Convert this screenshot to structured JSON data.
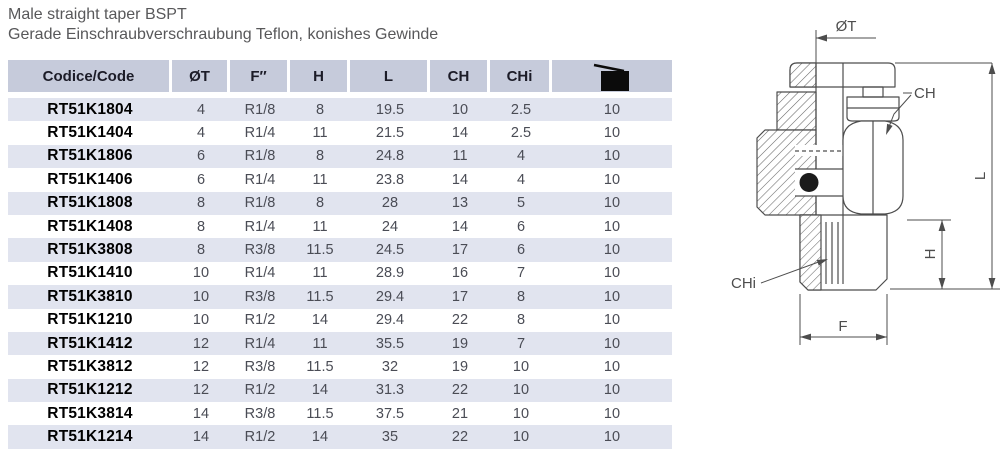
{
  "page": {
    "title_line1": "Male straight taper BSPT",
    "title_line2": "Gerade Einschraubverschraubung Teflon, konishes Gewinde"
  },
  "table": {
    "headers": {
      "code": "Codice/Code",
      "ot": "ØT",
      "f": "F″",
      "h": "H",
      "l": "L",
      "ch": "CH",
      "chi": "CHi",
      "package_icon": "package-icon"
    },
    "rows": [
      [
        "RT51K1804",
        "4",
        "R1/8",
        "8",
        "19.5",
        "10",
        "2.5",
        "10"
      ],
      [
        "RT51K1404",
        "4",
        "R1/4",
        "11",
        "21.5",
        "14",
        "2.5",
        "10"
      ],
      [
        "RT51K1806",
        "6",
        "R1/8",
        "8",
        "24.8",
        "11",
        "4",
        "10"
      ],
      [
        "RT51K1406",
        "6",
        "R1/4",
        "11",
        "23.8",
        "14",
        "4",
        "10"
      ],
      [
        "RT51K1808",
        "8",
        "R1/8",
        "8",
        "28",
        "13",
        "5",
        "10"
      ],
      [
        "RT51K1408",
        "8",
        "R1/4",
        "11",
        "24",
        "14",
        "6",
        "10"
      ],
      [
        "RT51K3808",
        "8",
        "R3/8",
        "11.5",
        "24.5",
        "17",
        "6",
        "10"
      ],
      [
        "RT51K1410",
        "10",
        "R1/4",
        "11",
        "28.9",
        "16",
        "7",
        "10"
      ],
      [
        "RT51K3810",
        "10",
        "R3/8",
        "11.5",
        "29.4",
        "17",
        "8",
        "10"
      ],
      [
        "RT51K1210",
        "10",
        "R1/2",
        "14",
        "29.4",
        "22",
        "8",
        "10"
      ],
      [
        "RT51K1412",
        "12",
        "R1/4",
        "11",
        "35.5",
        "19",
        "7",
        "10"
      ],
      [
        "RT51K3812",
        "12",
        "R3/8",
        "11.5",
        "32",
        "19",
        "10",
        "10"
      ],
      [
        "RT51K1212",
        "12",
        "R1/2",
        "14",
        "31.3",
        "22",
        "10",
        "10"
      ],
      [
        "RT51K3814",
        "14",
        "R3/8",
        "11.5",
        "37.5",
        "21",
        "10",
        "10"
      ],
      [
        "RT51K1214",
        "14",
        "R1/2",
        "14",
        "35",
        "22",
        "10",
        "10"
      ]
    ]
  },
  "diagram": {
    "labels": {
      "ot": "ØT",
      "ch": "CH",
      "l": "L",
      "h": "H",
      "chi": "CHi",
      "f": "F"
    }
  },
  "colors": {
    "header_bg": "#c6cbdb",
    "row_alt_bg": "#e1e4ef",
    "header_text": "#1c1c28",
    "value_text": "#4a4c55",
    "title_text": "#58585a",
    "drawing_line": "#4d4d4d"
  }
}
